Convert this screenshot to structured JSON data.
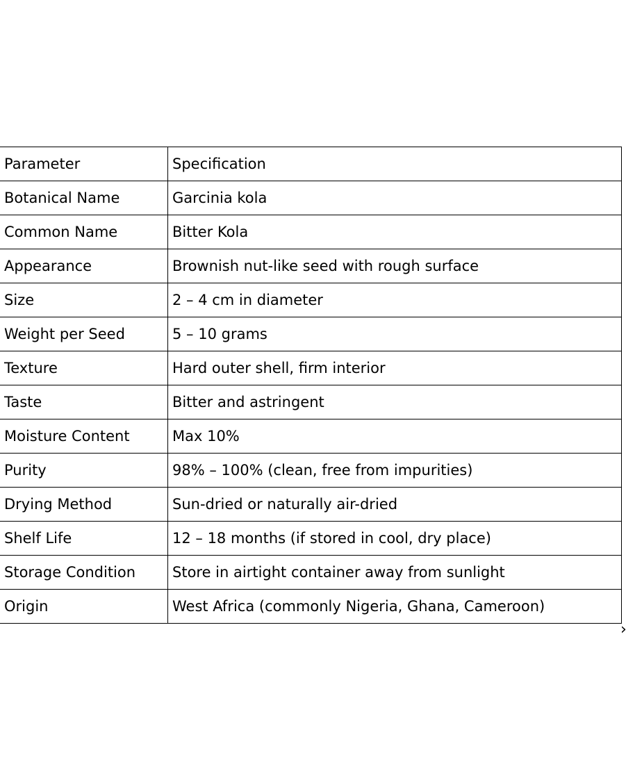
{
  "table": {
    "headers": [
      "Parameter",
      "Specification"
    ],
    "rows": [
      [
        "Botanical Name",
        "Garcinia kola"
      ],
      [
        "Common Name",
        "Bitter Kola"
      ],
      [
        "Appearance",
        "Brownish nut-like seed with rough surface"
      ],
      [
        "Size",
        "2 – 4 cm in diameter"
      ],
      [
        "Weight per Seed",
        "5 – 10 grams"
      ],
      [
        "Texture",
        "Hard outer shell, firm interior"
      ],
      [
        "Taste",
        "Bitter and astringent"
      ],
      [
        "Moisture Content",
        "Max 10%"
      ],
      [
        "Purity",
        "98% – 100% (clean, free from impurities)"
      ],
      [
        "Drying Method",
        "Sun-dried or naturally air-dried"
      ],
      [
        "Shelf Life",
        "12 – 18 months (if stored in cool, dry place)"
      ],
      [
        "Storage Condition",
        "Store in airtight container away from sunlight"
      ],
      [
        "Origin",
        "West Africa (commonly Nigeria, Ghana, Cameroon)"
      ]
    ]
  },
  "icons": {
    "next": "chevron-right-icon"
  }
}
